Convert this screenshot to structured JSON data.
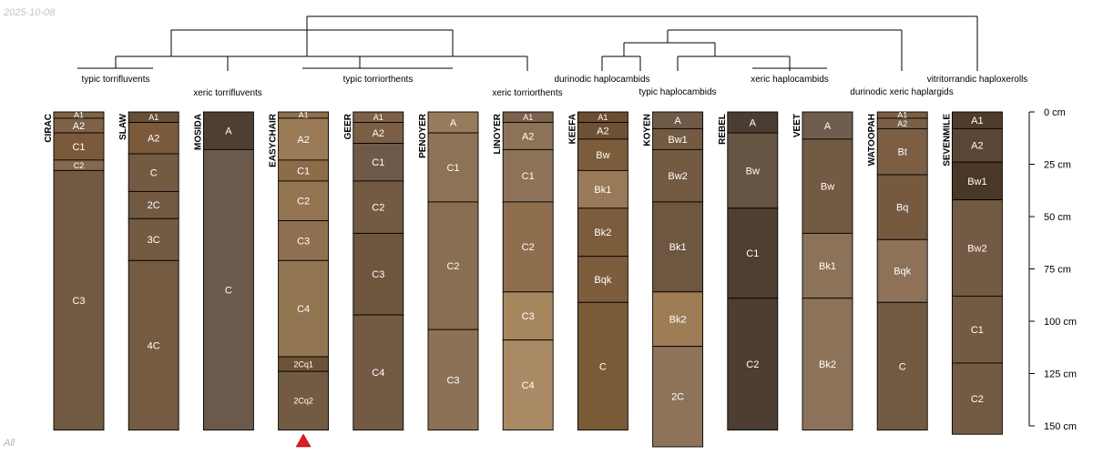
{
  "header": {
    "date": "2025-10-08"
  },
  "footer": {
    "label": "All"
  },
  "depth_axis": {
    "unit": "cm",
    "max": 150,
    "ticks": [
      {
        "value": 0,
        "label": "0 cm"
      },
      {
        "value": 25,
        "label": "25 cm"
      },
      {
        "value": 50,
        "label": "50 cm"
      },
      {
        "value": 75,
        "label": "75 cm"
      },
      {
        "value": 100,
        "label": "100 cm"
      },
      {
        "value": 125,
        "label": "125 cm"
      },
      {
        "value": 150,
        "label": "150 cm"
      }
    ]
  },
  "taxa": [
    "typic torrifluvents",
    "xeric torrifluvents",
    "typic torriorthents",
    "xeric torriorthents",
    "durinodic haplocambids",
    "typic haplocambids",
    "xeric haplocambids",
    "durinodic xeric haplargids",
    "vitritorrandic haploxerolls"
  ],
  "profiles": [
    {
      "name": "CIRAC",
      "taxon": "typic torrifluvents",
      "horizons": [
        {
          "name": "A1",
          "top": 0,
          "bottom": 3,
          "color": "#806448"
        },
        {
          "name": "A2",
          "top": 3,
          "bottom": 10,
          "color": "#7e6146"
        },
        {
          "name": "C1",
          "top": 10,
          "bottom": 23,
          "color": "#7a5a3a"
        },
        {
          "name": "C2",
          "top": 23,
          "bottom": 28,
          "color": "#85684d"
        },
        {
          "name": "C3",
          "top": 28,
          "bottom": 152,
          "color": "#725a42"
        }
      ]
    },
    {
      "name": "SLAW",
      "taxon": "xeric torrifluvents",
      "horizons": [
        {
          "name": "A1",
          "top": 0,
          "bottom": 5,
          "color": "#674e39"
        },
        {
          "name": "A2",
          "top": 5,
          "bottom": 20,
          "color": "#7a5a3a"
        },
        {
          "name": "C",
          "top": 20,
          "bottom": 38,
          "color": "#735a42"
        },
        {
          "name": "2C",
          "top": 38,
          "bottom": 51,
          "color": "#725a42"
        },
        {
          "name": "3C",
          "top": 51,
          "bottom": 71,
          "color": "#735a42"
        },
        {
          "name": "4C",
          "top": 71,
          "bottom": 152,
          "color": "#745b41"
        }
      ]
    },
    {
      "name": "MOSIDA",
      "taxon": "xeric torrifluvents",
      "horizons": [
        {
          "name": "A",
          "top": 0,
          "bottom": 18,
          "color": "#4f3f33"
        },
        {
          "name": "C",
          "top": 18,
          "bottom": 152,
          "color": "#6b5a4b"
        }
      ]
    },
    {
      "name": "EASYCHAIR",
      "taxon": "typic torriorthents",
      "horizons": [
        {
          "name": "A1",
          "top": 0,
          "bottom": 3,
          "color": "#8e6e4d"
        },
        {
          "name": "A2",
          "top": 3,
          "bottom": 23,
          "color": "#9a7b56"
        },
        {
          "name": "C1",
          "top": 23,
          "bottom": 33,
          "color": "#8d6c4a"
        },
        {
          "name": "C2",
          "top": 33,
          "bottom": 52,
          "color": "#937552"
        },
        {
          "name": "C3",
          "top": 52,
          "bottom": 71,
          "color": "#8f7151"
        },
        {
          "name": "C4",
          "top": 71,
          "bottom": 117,
          "color": "#927551"
        },
        {
          "name": "2Cq1",
          "top": 117,
          "bottom": 124,
          "color": "#6d5237"
        },
        {
          "name": "2Cq2",
          "top": 124,
          "bottom": 152,
          "color": "#735a42"
        }
      ]
    },
    {
      "name": "GEER",
      "taxon": "typic torriorthents",
      "horizons": [
        {
          "name": "A1",
          "top": 0,
          "bottom": 5,
          "color": "#7c6047"
        },
        {
          "name": "A2",
          "top": 5,
          "bottom": 15,
          "color": "#7b5f45"
        },
        {
          "name": "C1",
          "top": 15,
          "bottom": 33,
          "color": "#6f5a4a"
        },
        {
          "name": "C2",
          "top": 33,
          "bottom": 58,
          "color": "#735a42"
        },
        {
          "name": "C3",
          "top": 58,
          "bottom": 97,
          "color": "#6d553e"
        },
        {
          "name": "C4",
          "top": 97,
          "bottom": 152,
          "color": "#735a42"
        }
      ]
    },
    {
      "name": "PENOYER",
      "taxon": "typic torriorthents",
      "horizons": [
        {
          "name": "A",
          "top": 0,
          "bottom": 10,
          "color": "#987a5c"
        },
        {
          "name": "C1",
          "top": 10,
          "bottom": 43,
          "color": "#8d7256"
        },
        {
          "name": "C2",
          "top": 43,
          "bottom": 104,
          "color": "#8a6e52"
        },
        {
          "name": "C3",
          "top": 104,
          "bottom": 152,
          "color": "#8d7156"
        }
      ]
    },
    {
      "name": "LINOYER",
      "taxon": "xeric torriorthents",
      "horizons": [
        {
          "name": "A1",
          "top": 0,
          "bottom": 5,
          "color": "#7a624c"
        },
        {
          "name": "A2",
          "top": 5,
          "bottom": 18,
          "color": "#8c7257"
        },
        {
          "name": "C1",
          "top": 18,
          "bottom": 43,
          "color": "#8c7257"
        },
        {
          "name": "C2",
          "top": 43,
          "bottom": 86,
          "color": "#8f6e4d"
        },
        {
          "name": "C3",
          "top": 86,
          "bottom": 109,
          "color": "#a5865f"
        },
        {
          "name": "C4",
          "top": 109,
          "bottom": 152,
          "color": "#a98a64"
        }
      ]
    },
    {
      "name": "KEEFA",
      "taxon": "durinodic haplocambids",
      "horizons": [
        {
          "name": "A1",
          "top": 0,
          "bottom": 5,
          "color": "#6d4d2f"
        },
        {
          "name": "A2",
          "top": 5,
          "bottom": 13,
          "color": "#6e5034"
        },
        {
          "name": "Bw",
          "top": 13,
          "bottom": 28,
          "color": "#7c5c3b"
        },
        {
          "name": "Bk1",
          "top": 28,
          "bottom": 46,
          "color": "#987a59"
        },
        {
          "name": "Bk2",
          "top": 46,
          "bottom": 69,
          "color": "#7d5c3b"
        },
        {
          "name": "Bqk",
          "top": 69,
          "bottom": 91,
          "color": "#7e5d3c"
        },
        {
          "name": "C",
          "top": 91,
          "bottom": 152,
          "color": "#7b5a38"
        }
      ]
    },
    {
      "name": "KOYEN",
      "taxon": "typic haplocambids",
      "horizons": [
        {
          "name": "A",
          "top": 0,
          "bottom": 8,
          "color": "#6f5a47"
        },
        {
          "name": "Bw1",
          "top": 8,
          "bottom": 18,
          "color": "#745a40"
        },
        {
          "name": "Bw2",
          "top": 18,
          "bottom": 43,
          "color": "#735a42"
        },
        {
          "name": "Bk1",
          "top": 43,
          "bottom": 86,
          "color": "#6e5740"
        },
        {
          "name": "Bk2",
          "top": 86,
          "bottom": 112,
          "color": "#9e7c56"
        },
        {
          "name": "2C",
          "top": 112,
          "bottom": 160,
          "color": "#8f7359"
        }
      ]
    },
    {
      "name": "REBEL",
      "taxon": "xeric haplocambids",
      "horizons": [
        {
          "name": "A",
          "top": 0,
          "bottom": 10,
          "color": "#4c3d33"
        },
        {
          "name": "Bw",
          "top": 10,
          "bottom": 46,
          "color": "#665542"
        },
        {
          "name": "C1",
          "top": 46,
          "bottom": 89,
          "color": "#4e3f30"
        },
        {
          "name": "C2",
          "top": 89,
          "bottom": 152,
          "color": "#4d3e31"
        }
      ]
    },
    {
      "name": "VEET",
      "taxon": "xeric haplocambids",
      "horizons": [
        {
          "name": "A",
          "top": 0,
          "bottom": 13,
          "color": "#6f5e4e"
        },
        {
          "name": "Bw",
          "top": 13,
          "bottom": 58,
          "color": "#735a42"
        },
        {
          "name": "Bk1",
          "top": 58,
          "bottom": 89,
          "color": "#8b7258"
        },
        {
          "name": "Bk2",
          "top": 89,
          "bottom": 152,
          "color": "#8b7258"
        }
      ]
    },
    {
      "name": "WATOOPAH",
      "taxon": "durinodic xeric haplargids",
      "horizons": [
        {
          "name": "A1",
          "top": 0,
          "bottom": 3,
          "color": "#7a5f45"
        },
        {
          "name": "A2",
          "top": 3,
          "bottom": 8,
          "color": "#7b6046"
        },
        {
          "name": "Bt",
          "top": 8,
          "bottom": 30,
          "color": "#7b5e43"
        },
        {
          "name": "Bq",
          "top": 30,
          "bottom": 61,
          "color": "#755a40"
        },
        {
          "name": "Bqk",
          "top": 61,
          "bottom": 91,
          "color": "#8d7258"
        },
        {
          "name": "C",
          "top": 91,
          "bottom": 152,
          "color": "#725a42"
        }
      ]
    },
    {
      "name": "SEVENMILE",
      "taxon": "vitritorrandic haploxerolls",
      "horizons": [
        {
          "name": "A1",
          "top": 0,
          "bottom": 8,
          "color": "#4f3c2d"
        },
        {
          "name": "A2",
          "top": 8,
          "bottom": 24,
          "color": "#5a4634"
        },
        {
          "name": "Bw1",
          "top": 24,
          "bottom": 42,
          "color": "#4a3725"
        },
        {
          "name": "Bw2",
          "top": 42,
          "bottom": 88,
          "color": "#735a42"
        },
        {
          "name": "C1",
          "top": 88,
          "bottom": 120,
          "color": "#735a42"
        },
        {
          "name": "C2",
          "top": 120,
          "bottom": 154,
          "color": "#735a42"
        }
      ]
    }
  ],
  "marker": {
    "profile": "EASYCHAIR",
    "color": "#e41a1c"
  }
}
